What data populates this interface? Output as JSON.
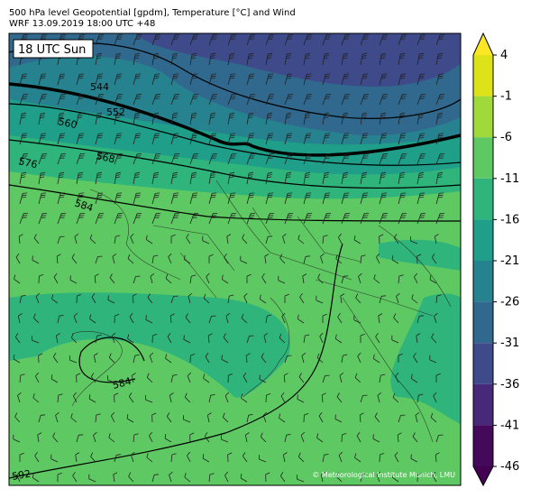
{
  "header": {
    "title": "500 hPa level Geopotential [gpdm], Temperature [°C] and Wind",
    "subtitle": "WRF 13.09.2019 18:00 UTC +48"
  },
  "map": {
    "time_label": "18 UTC Sun",
    "contour_labels": [
      544,
      552,
      560,
      568,
      576,
      584,
      584,
      592
    ],
    "credit": "© Meteorological Institute Munich, LMU"
  },
  "colorbar": {
    "ticks": [
      4,
      -1,
      -6,
      -11,
      -16,
      -21,
      -26,
      -31,
      -36,
      -41,
      -46
    ],
    "colors": [
      "#dde318",
      "#9fda3a",
      "#5ec962",
      "#2fb47c",
      "#1f9e89",
      "#26828e",
      "#31688e",
      "#3e4a89",
      "#482878",
      "#45095c"
    ],
    "extend_colors": [
      "#fde725",
      "#440154"
    ]
  }
}
